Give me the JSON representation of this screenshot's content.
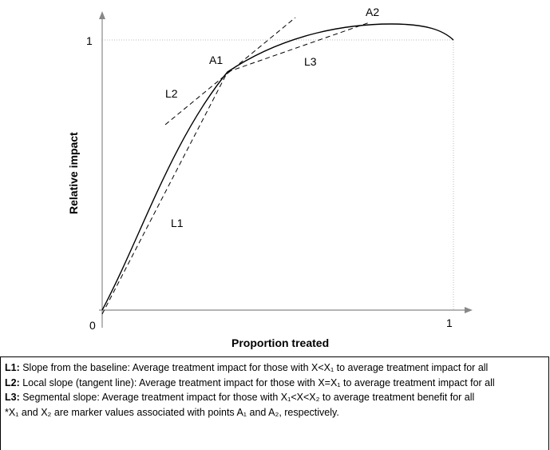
{
  "figure": {
    "y_axis_title": "Relative impact",
    "x_axis_title": "Proportion treated",
    "y_tick_top": "1",
    "x_tick_right": "1",
    "origin_tick": "0",
    "labels": {
      "a1": "A1",
      "a2": "A2",
      "l1": "L1",
      "l2": "L2",
      "l3": "L3"
    }
  },
  "caption": {
    "l1_key": "L1:",
    "l1_text": " Slope from the baseline: Average treatment impact for those with X<X₁ to average treatment impact for all",
    "l2_key": "L2:",
    "l2_text": " Local slope (tangent line): Average treatment impact for those with X=X₁ to average treatment impact for all",
    "l3_key": "L3:",
    "l3_text": " Segmental slope: Average treatment impact for those with X₁<X<X₂ to average treatment benefit for all",
    "footnote": "*X₁ and X₂ are marker values associated with points A₁ and A₂, respectively."
  }
}
